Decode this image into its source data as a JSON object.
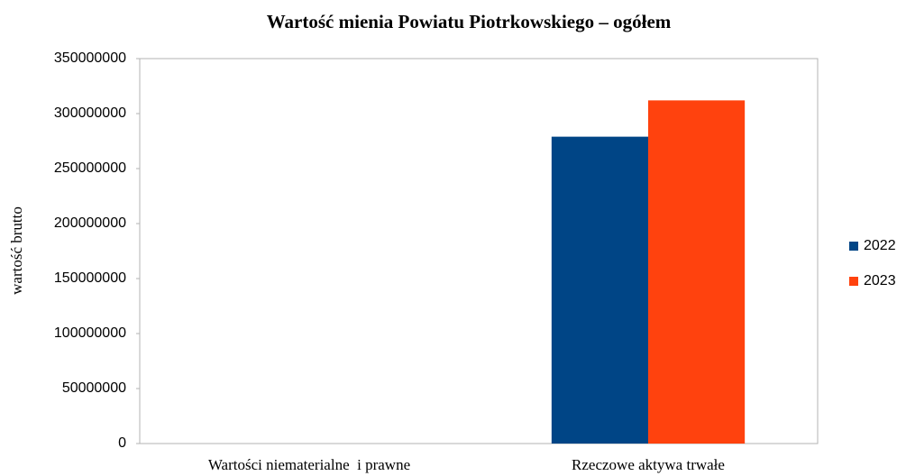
{
  "chart_data": {
    "type": "bar",
    "title": "Wartość mienia Powiatu Piotrkowskiego – ogółem",
    "y_label": "wartość brutto",
    "categories": [
      "Wartości niematerialne  i prawne",
      "Rzeczowe aktywa trwałe"
    ],
    "series": [
      {
        "name": "2022",
        "color": "#004586",
        "values": [
          0,
          279000000
        ]
      },
      {
        "name": "2023",
        "color": "#ff420e",
        "values": [
          0,
          312000000
        ]
      }
    ],
    "ylim": [
      0,
      350000000
    ],
    "yticks": [
      0,
      50000000,
      100000000,
      150000000,
      200000000,
      250000000,
      300000000,
      350000000
    ],
    "grid": false,
    "legend": "right"
  }
}
